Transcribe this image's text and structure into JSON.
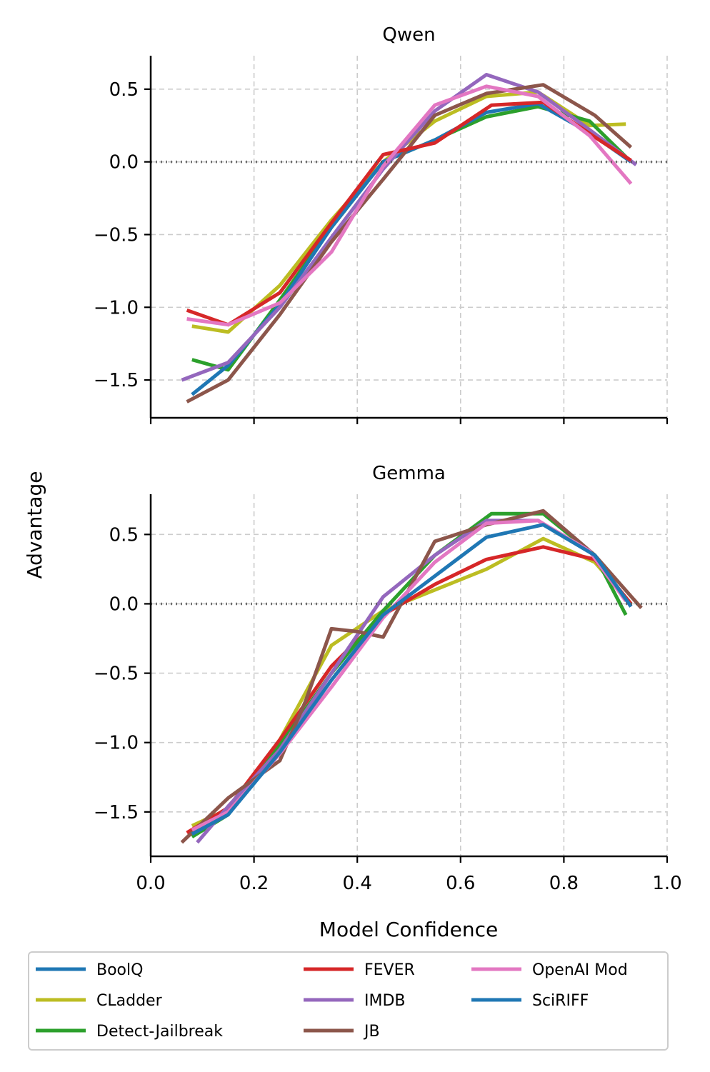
{
  "shared": {
    "xlabel": "Model Confidence",
    "ylabel": "Advantage",
    "xlim": [
      0.0,
      1.0
    ],
    "xticks": [
      0.0,
      0.2,
      0.4,
      0.6,
      0.8,
      1.0
    ],
    "xtick_labels": [
      "0.0",
      "0.2",
      "0.4",
      "0.6",
      "0.8",
      "1.0"
    ],
    "ytick_labels": [
      "0.5",
      "0.0",
      "−0.5",
      "−1.0",
      "−1.5"
    ],
    "yticks": [
      0.5,
      0.0,
      -0.5,
      -1.0,
      -1.5
    ],
    "reference_line_y": 0.0,
    "grid": true
  },
  "legend": {
    "placement": "bottom-center",
    "entries": [
      {
        "name": "BoolQ",
        "color": "#1f77b4"
      },
      {
        "name": "CLadder",
        "color": "#bcbd22"
      },
      {
        "name": "Detect-Jailbreak",
        "color": "#2ca02c"
      },
      {
        "name": "FEVER",
        "color": "#d62728"
      },
      {
        "name": "IMDB",
        "color": "#9467bd"
      },
      {
        "name": "JB",
        "color": "#8c564b"
      },
      {
        "name": "OpenAI Mod",
        "color": "#e377c2"
      },
      {
        "name": "SciRIFF",
        "color": "#1f77b4"
      }
    ]
  },
  "chart_data": [
    {
      "type": "line",
      "title": "Qwen",
      "xlabel": "",
      "ylabel": "Advantage",
      "ylim": [
        -1.76,
        0.73
      ],
      "series": [
        {
          "name": "CLadder",
          "color": "#bcbd22",
          "x": [
            0.08,
            0.15,
            0.25,
            0.35,
            0.45,
            0.55,
            0.65,
            0.75,
            0.85,
            0.92
          ],
          "values": [
            -1.13,
            -1.17,
            -0.85,
            -0.4,
            0.0,
            0.28,
            0.45,
            0.48,
            0.25,
            0.26
          ]
        },
        {
          "name": "Detect-Jailbreak",
          "color": "#2ca02c",
          "x": [
            0.08,
            0.15,
            0.25,
            0.35,
            0.45,
            0.55,
            0.65,
            0.75,
            0.85,
            0.93
          ],
          "values": [
            -1.36,
            -1.43,
            -0.95,
            -0.45,
            0.0,
            0.15,
            0.31,
            0.38,
            0.28,
            0.0
          ]
        },
        {
          "name": "BoolQ",
          "color": "#1f77b4",
          "x": [
            0.08,
            0.15,
            0.25,
            0.35,
            0.45,
            0.55,
            0.65,
            0.75,
            0.85,
            0.93
          ],
          "values": [
            -1.6,
            -1.4,
            -0.98,
            -0.45,
            0.0,
            0.15,
            0.34,
            0.4,
            0.2,
            0.0
          ]
        },
        {
          "name": "IMDB",
          "color": "#9467bd",
          "x": [
            0.06,
            0.15,
            0.25,
            0.35,
            0.45,
            0.55,
            0.65,
            0.75,
            0.85,
            0.94
          ],
          "values": [
            -1.5,
            -1.38,
            -1.0,
            -0.52,
            -0.05,
            0.35,
            0.6,
            0.48,
            0.22,
            -0.02
          ]
        },
        {
          "name": "JB",
          "color": "#8c564b",
          "x": [
            0.07,
            0.15,
            0.25,
            0.35,
            0.45,
            0.55,
            0.65,
            0.76,
            0.86,
            0.93
          ],
          "values": [
            -1.65,
            -1.5,
            -1.05,
            -0.55,
            -0.12,
            0.32,
            0.47,
            0.53,
            0.32,
            0.1
          ]
        },
        {
          "name": "FEVER",
          "color": "#d62728",
          "x": [
            0.07,
            0.15,
            0.25,
            0.35,
            0.45,
            0.55,
            0.66,
            0.76,
            0.86,
            0.93
          ],
          "values": [
            -1.02,
            -1.12,
            -0.9,
            -0.42,
            0.05,
            0.13,
            0.39,
            0.41,
            0.17,
            0.01
          ]
        },
        {
          "name": "OpenAI Mod",
          "color": "#e377c2",
          "x": [
            0.07,
            0.15,
            0.25,
            0.35,
            0.45,
            0.55,
            0.65,
            0.75,
            0.85,
            0.93
          ],
          "values": [
            -1.08,
            -1.12,
            -0.97,
            -0.62,
            -0.03,
            0.39,
            0.52,
            0.45,
            0.18,
            -0.15
          ]
        }
      ]
    },
    {
      "type": "line",
      "title": "Gemma",
      "xlabel": "Model Confidence",
      "ylabel": "Advantage",
      "ylim": [
        -1.82,
        0.79
      ],
      "series": [
        {
          "name": "CLadder",
          "color": "#bcbd22",
          "x": [
            0.08,
            0.15,
            0.25,
            0.35,
            0.45,
            0.55,
            0.65,
            0.76,
            0.86,
            0.93
          ],
          "values": [
            -1.6,
            -1.48,
            -0.98,
            -0.3,
            -0.05,
            0.1,
            0.25,
            0.47,
            0.3,
            0.0
          ]
        },
        {
          "name": "FEVER",
          "color": "#d62728",
          "x": [
            0.07,
            0.15,
            0.25,
            0.35,
            0.45,
            0.55,
            0.65,
            0.76,
            0.86,
            0.93
          ],
          "values": [
            -1.65,
            -1.47,
            -0.98,
            -0.45,
            -0.08,
            0.14,
            0.32,
            0.41,
            0.32,
            0.0
          ]
        },
        {
          "name": "Detect-Jailbreak",
          "color": "#2ca02c",
          "x": [
            0.08,
            0.15,
            0.25,
            0.35,
            0.45,
            0.55,
            0.66,
            0.76,
            0.86,
            0.92
          ],
          "values": [
            -1.68,
            -1.52,
            -1.02,
            -0.5,
            -0.05,
            0.35,
            0.65,
            0.65,
            0.35,
            -0.08
          ]
        },
        {
          "name": "IMDB",
          "color": "#9467bd",
          "x": [
            0.09,
            0.15,
            0.25,
            0.35,
            0.45,
            0.55,
            0.65,
            0.75,
            0.86,
            0.93
          ],
          "values": [
            -1.72,
            -1.46,
            -1.05,
            -0.5,
            0.05,
            0.35,
            0.6,
            0.6,
            0.35,
            -0.02
          ]
        },
        {
          "name": "JB",
          "color": "#8c564b",
          "x": [
            0.06,
            0.15,
            0.25,
            0.3,
            0.35,
            0.4,
            0.45,
            0.55,
            0.65,
            0.76,
            0.86,
            0.95
          ],
          "values": [
            -1.72,
            -1.4,
            -1.13,
            -0.7,
            -0.18,
            -0.2,
            -0.24,
            0.45,
            0.57,
            0.67,
            0.35,
            -0.03
          ]
        },
        {
          "name": "OpenAI Mod",
          "color": "#e377c2",
          "x": [
            0.08,
            0.15,
            0.25,
            0.35,
            0.45,
            0.55,
            0.65,
            0.75,
            0.85,
            0.92
          ],
          "values": [
            -1.63,
            -1.5,
            -1.08,
            -0.6,
            -0.1,
            0.3,
            0.58,
            0.6,
            0.38,
            0.02
          ]
        },
        {
          "name": "SciRIFF",
          "color": "#1f77b4",
          "x": [
            0.08,
            0.15,
            0.25,
            0.35,
            0.45,
            0.55,
            0.65,
            0.76,
            0.86,
            0.93
          ],
          "values": [
            -1.66,
            -1.52,
            -1.07,
            -0.55,
            -0.08,
            0.2,
            0.48,
            0.57,
            0.35,
            -0.02
          ]
        }
      ]
    }
  ]
}
